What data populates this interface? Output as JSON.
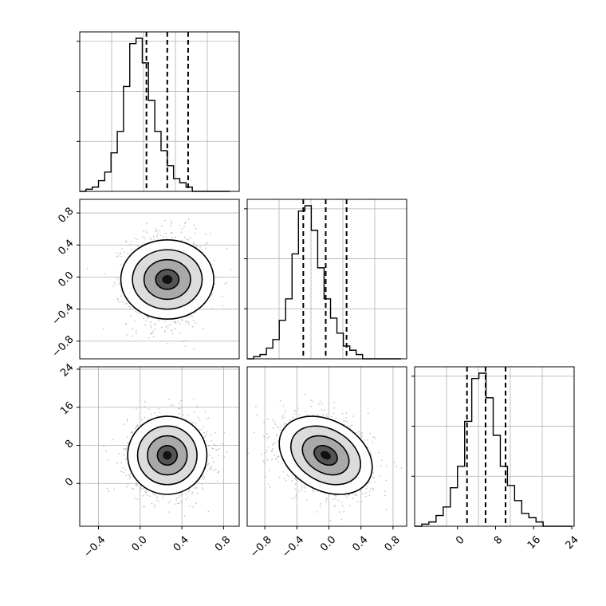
{
  "colors": {
    "background": "#ffffff",
    "ink": "#000000",
    "grid": "#b0b0b0",
    "scatter": "#9a9a9a"
  },
  "chart_data": [
    {
      "type": "histogram",
      "panel": "row1-col1",
      "bins_x": [
        -0.58,
        -0.52,
        -0.46,
        -0.4,
        -0.34,
        -0.28,
        -0.22,
        -0.16,
        -0.1,
        -0.04,
        0.02,
        0.08,
        0.14,
        0.2,
        0.26,
        0.32,
        0.38,
        0.44,
        0.5,
        0.56,
        0.62,
        0.68,
        0.74,
        0.8,
        0.86
      ],
      "counts": [
        0,
        2,
        4,
        10,
        18,
        36,
        56,
        98,
        138,
        143,
        120,
        85,
        56,
        38,
        24,
        12,
        8,
        4,
        0,
        0,
        0,
        0,
        0,
        0
      ],
      "quantiles": [
        0.06,
        0.26,
        0.46
      ],
      "xlim": [
        -0.58,
        0.95
      ],
      "grid": true
    },
    {
      "type": "histogram",
      "panel": "row2-col2",
      "bins_x": [
        -1.02,
        -0.94,
        -0.86,
        -0.78,
        -0.7,
        -0.62,
        -0.54,
        -0.46,
        -0.38,
        -0.3,
        -0.22,
        -0.14,
        -0.06,
        0.02,
        0.1,
        0.18,
        0.26,
        0.34,
        0.42,
        0.5,
        0.58,
        0.66,
        0.74,
        0.82,
        0.9
      ],
      "counts": [
        0,
        2,
        4,
        10,
        18,
        36,
        56,
        98,
        138,
        143,
        120,
        85,
        56,
        38,
        24,
        12,
        8,
        4,
        0,
        0,
        0,
        0,
        0,
        0
      ],
      "quantiles": [
        -0.32,
        -0.04,
        0.22
      ],
      "xlim": [
        -1.02,
        0.97
      ],
      "grid": true
    },
    {
      "type": "histogram",
      "panel": "row3-col3",
      "bins_x": [
        -9.0,
        -7.5,
        -6.0,
        -4.5,
        -3.0,
        -1.5,
        0.0,
        1.5,
        3.0,
        4.5,
        6.0,
        7.5,
        9.0,
        10.5,
        12.0,
        13.5,
        15.0,
        16.5,
        18.0,
        19.5,
        21.0,
        22.5,
        24.0
      ],
      "counts": [
        0,
        2,
        4,
        10,
        18,
        36,
        56,
        98,
        138,
        143,
        120,
        85,
        56,
        38,
        24,
        12,
        8,
        4,
        0,
        0,
        0,
        0
      ],
      "quantiles": [
        2.0,
        5.9,
        10.1
      ],
      "xlim": [
        -9.0,
        24.5
      ],
      "grid": true
    },
    {
      "type": "scatter",
      "panel": "row2-col1",
      "density_2d": true,
      "center": [
        0.26,
        -0.03
      ],
      "spread": [
        0.19,
        0.29
      ],
      "rho": 0.0,
      "xlim": [
        -0.58,
        0.95
      ],
      "ylim": [
        -1.02,
        0.97
      ],
      "y_ticks": [
        "0.8",
        "0.4",
        "0.0",
        "−0.4",
        "−0.8"
      ],
      "y_tick_values": [
        0.8,
        0.4,
        0.0,
        -0.4,
        -0.8
      ],
      "grid": true
    },
    {
      "type": "scatter",
      "panel": "row3-col1",
      "density_2d": true,
      "center": [
        0.26,
        5.9
      ],
      "spread": [
        0.19,
        4.1
      ],
      "rho": 0.0,
      "xlim": [
        -0.58,
        0.95
      ],
      "ylim": [
        -9.0,
        24.5
      ],
      "x_ticks": [
        "−0.4",
        "0.0",
        "0.4",
        "0.8"
      ],
      "x_tick_values": [
        -0.4,
        0.0,
        0.4,
        0.8
      ],
      "y_ticks": [
        "24",
        "16",
        "8",
        "0"
      ],
      "y_tick_values": [
        24,
        16,
        8,
        0
      ],
      "grid": true
    },
    {
      "type": "scatter",
      "panel": "row3-col2",
      "density_2d": true,
      "center": [
        -0.04,
        5.9
      ],
      "spread": [
        0.29,
        4.1
      ],
      "rho": -0.3,
      "xlim": [
        -1.02,
        0.97
      ],
      "ylim": [
        -9.0,
        24.5
      ],
      "x_ticks": [
        "−0.8",
        "−0.4",
        "0.0",
        "0.4",
        "0.8"
      ],
      "x_tick_values": [
        -0.8,
        -0.4,
        0.0,
        0.4,
        0.8
      ],
      "grid": true
    },
    {
      "type": "axis",
      "panel": "row3-col3-xaxis",
      "x_ticks": [
        "0",
        "8",
        "16",
        "24"
      ],
      "x_tick_values": [
        0,
        8,
        16,
        24
      ]
    }
  ]
}
